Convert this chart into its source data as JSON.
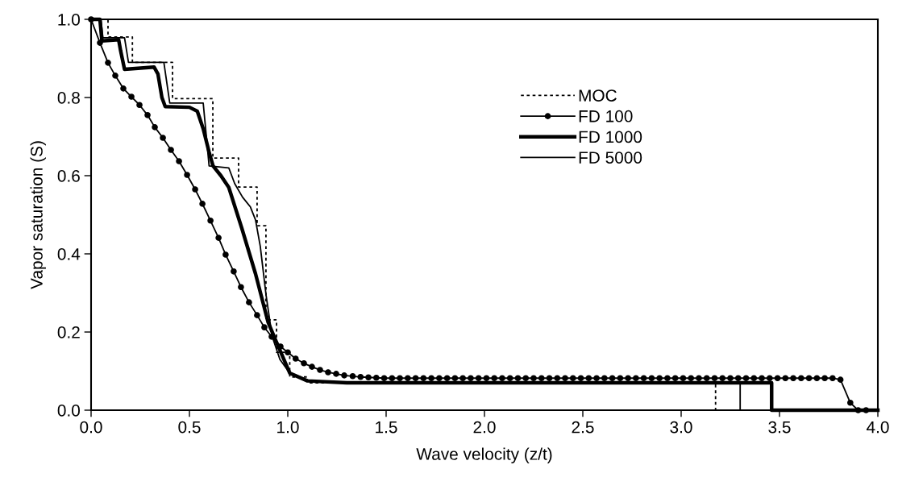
{
  "chart_data": {
    "type": "line",
    "xlabel": "Wave velocity (z/t)",
    "ylabel": "Vapor saturation (S)",
    "xlim": [
      0,
      4
    ],
    "ylim": [
      0,
      1
    ],
    "xticks": [
      {
        "value": 0,
        "label": "0.0"
      },
      {
        "value": 0.5,
        "label": "0.5"
      },
      {
        "value": 1,
        "label": "1.0"
      },
      {
        "value": 1.5,
        "label": "1.5"
      },
      {
        "value": 2,
        "label": "2.0"
      },
      {
        "value": 2.5,
        "label": "2.5"
      },
      {
        "value": 3,
        "label": "3.0"
      },
      {
        "value": 3.5,
        "label": "3.5"
      },
      {
        "value": 4,
        "label": "4.0"
      }
    ],
    "yticks": [
      {
        "value": 0,
        "label": "0.0"
      },
      {
        "value": 0.2,
        "label": "0.2"
      },
      {
        "value": 0.4,
        "label": "0.4"
      },
      {
        "value": 0.6,
        "label": "0.6"
      },
      {
        "value": 0.8,
        "label": "0.8"
      },
      {
        "value": 1,
        "label": "1.0"
      }
    ],
    "grid": false,
    "legend": "top right",
    "series": [
      {
        "name": "MOC",
        "color": "#000000",
        "line_style": "dotted",
        "marker": "none",
        "x": [
          0,
          0.086,
          0.086,
          0.21,
          0.21,
          0.414,
          0.414,
          0.619,
          0.619,
          0.75,
          0.75,
          0.844,
          0.844,
          0.889,
          0.889,
          0.943,
          0.943,
          1.01,
          1.01,
          1.1,
          1.1,
          3.175,
          3.175,
          4.0
        ],
        "values": [
          1.0,
          1.0,
          0.955,
          0.955,
          0.89,
          0.89,
          0.797,
          0.797,
          0.645,
          0.645,
          0.571,
          0.571,
          0.472,
          0.472,
          0.231,
          0.231,
          0.148,
          0.148,
          0.085,
          0.085,
          0.07,
          0.07,
          0.0,
          0.0
        ]
      },
      {
        "name": "FD 100",
        "color": "#000000",
        "line_style": "solid",
        "marker": "circle",
        "x": [
          0,
          0.045,
          0.086,
          0.123,
          0.164,
          0.205,
          0.246,
          0.287,
          0.324,
          0.365,
          0.406,
          0.447,
          0.488,
          0.529,
          0.566,
          0.607,
          0.648,
          0.684,
          0.725,
          0.762,
          0.803,
          0.844,
          0.881,
          0.918,
          0.963,
          1.0,
          1.04,
          1.082,
          1.123,
          1.164,
          1.205,
          1.246,
          1.287,
          1.33,
          1.37,
          1.41,
          1.45,
          1.49,
          1.53,
          1.57,
          1.61,
          1.65,
          1.69,
          1.73,
          1.77,
          1.81,
          1.85,
          1.89,
          1.93,
          1.97,
          2.01,
          2.05,
          2.09,
          2.13,
          2.17,
          2.21,
          2.25,
          2.29,
          2.33,
          2.37,
          2.41,
          2.45,
          2.49,
          2.53,
          2.57,
          2.61,
          2.65,
          2.69,
          2.73,
          2.77,
          2.81,
          2.85,
          2.89,
          2.93,
          2.97,
          3.01,
          3.05,
          3.09,
          3.13,
          3.17,
          3.21,
          3.25,
          3.29,
          3.33,
          3.37,
          3.41,
          3.45,
          3.49,
          3.53,
          3.57,
          3.61,
          3.65,
          3.69,
          3.73,
          3.77,
          3.81,
          3.86,
          3.9,
          3.94
        ],
        "values": [
          1.0,
          0.94,
          0.889,
          0.856,
          0.823,
          0.802,
          0.781,
          0.755,
          0.724,
          0.697,
          0.666,
          0.637,
          0.602,
          0.565,
          0.528,
          0.485,
          0.441,
          0.398,
          0.355,
          0.315,
          0.276,
          0.243,
          0.212,
          0.188,
          0.163,
          0.148,
          0.132,
          0.12,
          0.111,
          0.103,
          0.097,
          0.093,
          0.089,
          0.087,
          0.085,
          0.084,
          0.083,
          0.082,
          0.082,
          0.082,
          0.082,
          0.082,
          0.082,
          0.082,
          0.082,
          0.082,
          0.082,
          0.082,
          0.082,
          0.082,
          0.082,
          0.082,
          0.082,
          0.082,
          0.082,
          0.082,
          0.082,
          0.082,
          0.082,
          0.082,
          0.082,
          0.082,
          0.082,
          0.082,
          0.082,
          0.082,
          0.082,
          0.082,
          0.082,
          0.082,
          0.082,
          0.082,
          0.082,
          0.082,
          0.082,
          0.082,
          0.082,
          0.082,
          0.082,
          0.082,
          0.082,
          0.082,
          0.082,
          0.082,
          0.082,
          0.082,
          0.082,
          0.082,
          0.082,
          0.082,
          0.082,
          0.082,
          0.082,
          0.082,
          0.082,
          0.078,
          0.019,
          0.0,
          0.0
        ]
      },
      {
        "name": "FD 1000",
        "color": "#000000",
        "line_style": "solid",
        "marker": "none",
        "x": [
          0,
          0.045,
          0.055,
          0.14,
          0.15,
          0.17,
          0.32,
          0.34,
          0.36,
          0.377,
          0.5,
          0.54,
          0.57,
          0.6,
          0.62,
          0.66,
          0.7,
          0.766,
          0.836,
          0.9,
          0.94,
          1.01,
          1.1,
          1.3,
          3.46,
          3.46,
          4.0
        ],
        "values": [
          1.0,
          1.0,
          0.945,
          0.948,
          0.92,
          0.872,
          0.878,
          0.86,
          0.8,
          0.777,
          0.775,
          0.765,
          0.72,
          0.66,
          0.625,
          0.6,
          0.57,
          0.466,
          0.349,
          0.225,
          0.177,
          0.095,
          0.075,
          0.07,
          0.07,
          0.0,
          0.0
        ]
      },
      {
        "name": "FD 5000",
        "color": "#000000",
        "line_style": "solid",
        "marker": "none",
        "x": [
          0,
          0.05,
          0.06,
          0.17,
          0.19,
          0.37,
          0.4,
          0.57,
          0.6,
          0.7,
          0.73,
          0.77,
          0.81,
          0.836,
          0.86,
          0.89,
          0.92,
          0.96,
          1.01,
          1.11,
          1.3,
          3.3,
          3.3,
          4.0
        ],
        "values": [
          1.0,
          1.0,
          0.953,
          0.953,
          0.89,
          0.89,
          0.786,
          0.786,
          0.625,
          0.62,
          0.58,
          0.545,
          0.52,
          0.487,
          0.42,
          0.293,
          0.19,
          0.13,
          0.095,
          0.074,
          0.07,
          0.07,
          0.0,
          0.0
        ]
      }
    ]
  }
}
